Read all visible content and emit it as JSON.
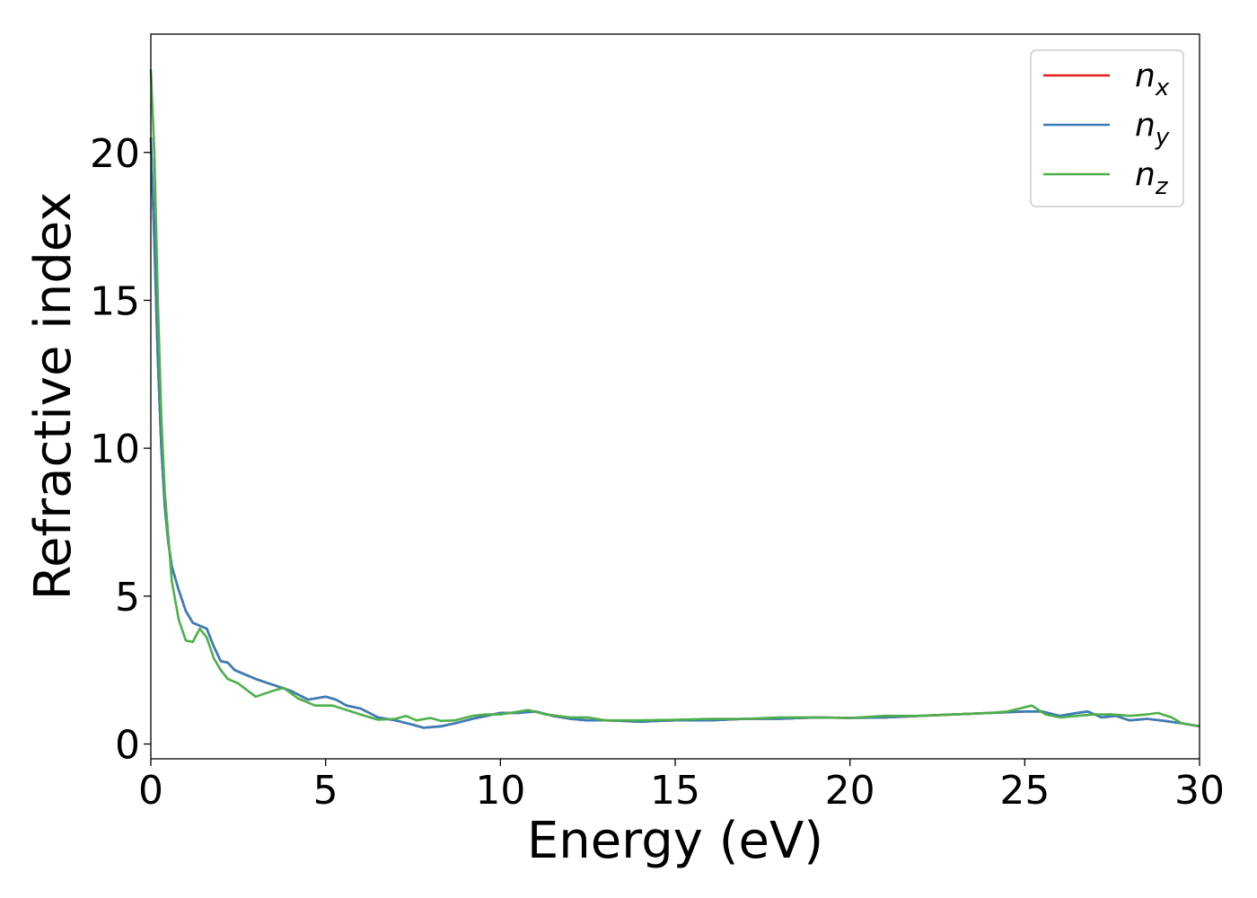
{
  "chart_data": {
    "type": "line",
    "xlabel": "Energy (eV)",
    "ylabel": "Refractive index",
    "xlim": [
      0,
      30
    ],
    "ylim": [
      -0.5,
      24
    ],
    "xticks": [
      "0",
      "5",
      "10",
      "15",
      "20",
      "25",
      "30"
    ],
    "yticks": [
      "0",
      "5",
      "10",
      "15",
      "20"
    ],
    "grid": false,
    "legend_position": "top-right",
    "series": [
      {
        "name": "n_x",
        "label_base": "n",
        "label_sub": "x",
        "color": "#e41a1c",
        "x": [
          0,
          0.1,
          0.2,
          0.3,
          0.4,
          0.5,
          0.6,
          0.8,
          1.0,
          1.2,
          1.4,
          1.6,
          1.8,
          2.0,
          2.2,
          2.4,
          2.6,
          3.0,
          3.5,
          4.0,
          4.5,
          5.0,
          5.3,
          5.6,
          6.0,
          6.5,
          7.0,
          7.5,
          7.8,
          8.3,
          8.7,
          9.2,
          9.6,
          10.0,
          10.5,
          11.0,
          11.5,
          12.0,
          12.5,
          13.0,
          13.5,
          14.0,
          14.5,
          15.0,
          16.0,
          17.0,
          18.0,
          19.0,
          20.0,
          21.0,
          22.0,
          23.0,
          24.0,
          25.0,
          25.5,
          26.0,
          26.5,
          26.8,
          27.2,
          27.6,
          28.0,
          28.5,
          29.0,
          29.5,
          30.0
        ],
        "y": [
          20.5,
          17.0,
          13.0,
          10.0,
          8.0,
          6.8,
          6.0,
          5.2,
          4.5,
          4.1,
          4.0,
          3.9,
          3.3,
          2.8,
          2.75,
          2.5,
          2.4,
          2.2,
          2.0,
          1.8,
          1.5,
          1.6,
          1.5,
          1.3,
          1.2,
          0.9,
          0.8,
          0.65,
          0.55,
          0.6,
          0.7,
          0.85,
          0.95,
          1.05,
          1.05,
          1.1,
          0.95,
          0.85,
          0.8,
          0.8,
          0.78,
          0.75,
          0.78,
          0.8,
          0.8,
          0.85,
          0.85,
          0.9,
          0.88,
          0.9,
          0.95,
          1.0,
          1.05,
          1.1,
          1.1,
          0.95,
          1.05,
          1.1,
          0.9,
          0.95,
          0.8,
          0.85,
          0.78,
          0.7,
          0.6
        ]
      },
      {
        "name": "n_y",
        "label_base": "n",
        "label_sub": "y",
        "color": "#377eb8",
        "x": [
          0,
          0.1,
          0.2,
          0.3,
          0.4,
          0.5,
          0.6,
          0.8,
          1.0,
          1.2,
          1.4,
          1.6,
          1.8,
          2.0,
          2.2,
          2.4,
          2.6,
          3.0,
          3.5,
          4.0,
          4.5,
          5.0,
          5.3,
          5.6,
          6.0,
          6.5,
          7.0,
          7.5,
          7.8,
          8.3,
          8.7,
          9.2,
          9.6,
          10.0,
          10.5,
          11.0,
          11.5,
          12.0,
          12.5,
          13.0,
          13.5,
          14.0,
          14.5,
          15.0,
          16.0,
          17.0,
          18.0,
          19.0,
          20.0,
          21.0,
          22.0,
          23.0,
          24.0,
          25.0,
          25.5,
          26.0,
          26.5,
          26.8,
          27.2,
          27.6,
          28.0,
          28.5,
          29.0,
          29.5,
          30.0
        ],
        "y": [
          20.5,
          17.0,
          13.0,
          10.0,
          8.0,
          6.8,
          6.0,
          5.2,
          4.5,
          4.1,
          4.0,
          3.9,
          3.3,
          2.8,
          2.75,
          2.5,
          2.4,
          2.2,
          2.0,
          1.8,
          1.5,
          1.6,
          1.5,
          1.3,
          1.2,
          0.9,
          0.8,
          0.65,
          0.55,
          0.6,
          0.7,
          0.85,
          0.95,
          1.05,
          1.05,
          1.1,
          0.95,
          0.85,
          0.8,
          0.8,
          0.78,
          0.75,
          0.78,
          0.8,
          0.8,
          0.85,
          0.85,
          0.9,
          0.88,
          0.9,
          0.95,
          1.0,
          1.05,
          1.1,
          1.1,
          0.95,
          1.05,
          1.1,
          0.9,
          0.95,
          0.8,
          0.85,
          0.78,
          0.7,
          0.6
        ]
      },
      {
        "name": "n_z",
        "label_base": "n",
        "label_sub": "z",
        "color": "#4daf4a",
        "x": [
          0,
          0.1,
          0.2,
          0.3,
          0.4,
          0.5,
          0.6,
          0.8,
          1.0,
          1.2,
          1.4,
          1.6,
          1.8,
          2.0,
          2.2,
          2.5,
          3.0,
          3.5,
          3.8,
          4.2,
          4.7,
          5.2,
          5.6,
          6.0,
          6.5,
          7.0,
          7.3,
          7.6,
          8.0,
          8.3,
          8.7,
          9.2,
          9.6,
          10.0,
          10.8,
          11.3,
          12.0,
          12.5,
          13.0,
          14.0,
          15.0,
          16.0,
          17.0,
          18.0,
          19.0,
          20.0,
          21.0,
          22.0,
          23.0,
          24.0,
          24.5,
          25.2,
          25.6,
          26.0,
          26.5,
          27.0,
          27.5,
          28.0,
          28.5,
          28.8,
          29.2,
          29.5,
          30.0
        ],
        "y": [
          22.8,
          20.0,
          15.0,
          11.0,
          8.5,
          7.0,
          5.5,
          4.2,
          3.5,
          3.45,
          3.9,
          3.6,
          2.9,
          2.5,
          2.2,
          2.05,
          1.6,
          1.8,
          1.9,
          1.55,
          1.3,
          1.3,
          1.15,
          1.0,
          0.82,
          0.85,
          0.95,
          0.8,
          0.88,
          0.78,
          0.8,
          0.95,
          1.0,
          1.0,
          1.15,
          1.0,
          0.9,
          0.9,
          0.8,
          0.8,
          0.82,
          0.85,
          0.85,
          0.9,
          0.9,
          0.88,
          0.95,
          0.95,
          1.0,
          1.05,
          1.1,
          1.3,
          1.0,
          0.9,
          0.95,
          1.0,
          1.0,
          0.95,
          1.0,
          1.05,
          0.9,
          0.7,
          0.6
        ]
      }
    ]
  }
}
